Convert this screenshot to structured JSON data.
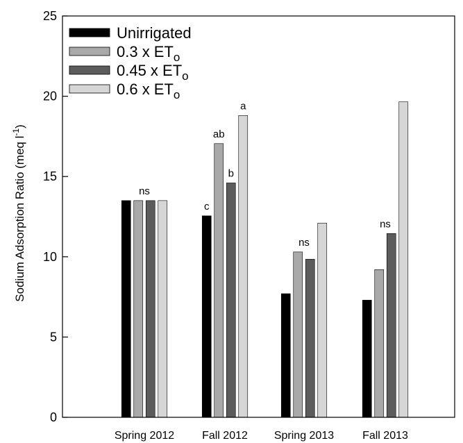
{
  "chart_data": {
    "type": "bar",
    "ylabel": "Sodium Adsorption Ratio (meq l⁻¹)",
    "ylabel_main": "Sodium Adsorption Ratio (meq l",
    "ylabel_sup": "-1",
    "ylabel_close": ")",
    "ylim": [
      0,
      25
    ],
    "yticks": [
      0,
      5,
      10,
      15,
      20,
      25
    ],
    "categories": [
      "Spring 2012",
      "Fall 2012",
      "Spring 2013",
      "Fall 2013"
    ],
    "series": [
      {
        "name": "Unirrigated",
        "name_main": "Unirrigated",
        "name_sub": "",
        "color": "#000000",
        "values": [
          13.5,
          12.55,
          7.7,
          7.3
        ]
      },
      {
        "name": "0.3 x ETo",
        "name_main": "0.3 x ET",
        "name_sub": "o",
        "color": "#a9a9a9",
        "values": [
          13.5,
          17.05,
          10.3,
          9.2
        ]
      },
      {
        "name": "0.45 x ETo",
        "name_main": "0.45 x ET",
        "name_sub": "o",
        "color": "#5c5c5c",
        "values": [
          13.5,
          14.6,
          9.85,
          11.45
        ]
      },
      {
        "name": "0.6 x ETo",
        "name_main": "0.6 x ET",
        "name_sub": "o",
        "color": "#d6d6d6",
        "values": [
          13.5,
          18.8,
          12.1,
          19.65
        ]
      }
    ],
    "annotations": [
      {
        "text": "ns",
        "category": 0,
        "series": 1,
        "y": 13.8
      },
      {
        "text": "c",
        "category": 1,
        "series": 0,
        "y": 12.85
      },
      {
        "text": "ab",
        "category": 1,
        "series": 1,
        "y": 17.35
      },
      {
        "text": "b",
        "category": 1,
        "series": 2,
        "y": 14.9
      },
      {
        "text": "a",
        "category": 1,
        "series": 3,
        "y": 19.1
      },
      {
        "text": "ns",
        "category": 2,
        "series": 1,
        "y": 10.6
      },
      {
        "text": "ns",
        "category": 3,
        "series": 1,
        "y": 11.75
      }
    ],
    "legend_position": "top-left",
    "grid": false
  }
}
